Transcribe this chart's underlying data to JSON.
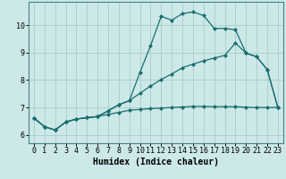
{
  "title": "",
  "xlabel": "Humidex (Indice chaleur)",
  "bg_color": "#cce8e8",
  "grid_color": "#aacccc",
  "line_color": "#1a6e6e",
  "xlim": [
    -0.5,
    23.5
  ],
  "ylim": [
    5.7,
    10.85
  ],
  "xticks": [
    0,
    1,
    2,
    3,
    4,
    5,
    6,
    7,
    8,
    9,
    10,
    11,
    12,
    13,
    14,
    15,
    16,
    17,
    18,
    19,
    20,
    21,
    22,
    23
  ],
  "yticks": [
    6,
    7,
    8,
    9,
    10
  ],
  "line1_x": [
    0,
    1,
    2,
    3,
    4,
    5,
    6,
    7,
    8,
    9,
    10,
    11,
    12,
    13,
    14,
    15,
    16,
    17,
    18,
    19,
    20,
    21,
    22,
    23
  ],
  "line1_y": [
    6.62,
    6.3,
    6.18,
    6.47,
    6.58,
    6.63,
    6.67,
    6.88,
    7.1,
    7.25,
    8.28,
    9.25,
    10.32,
    10.18,
    10.42,
    10.48,
    10.35,
    9.88,
    9.88,
    9.83,
    8.98,
    8.85,
    8.38,
    7.0
  ],
  "line2_x": [
    0,
    1,
    2,
    3,
    4,
    5,
    6,
    7,
    8,
    9,
    10,
    11,
    12,
    13,
    14,
    15,
    16,
    17,
    18,
    19,
    20,
    21,
    22,
    23
  ],
  "line2_y": [
    6.62,
    6.3,
    6.18,
    6.47,
    6.58,
    6.63,
    6.67,
    6.88,
    7.1,
    7.25,
    7.52,
    7.78,
    8.02,
    8.22,
    8.45,
    8.58,
    8.7,
    8.8,
    8.9,
    9.35,
    8.98,
    8.85,
    8.38,
    7.0
  ],
  "line3_x": [
    0,
    1,
    2,
    3,
    4,
    5,
    6,
    7,
    8,
    9,
    10,
    11,
    12,
    13,
    14,
    15,
    16,
    17,
    18,
    19,
    20,
    21,
    22,
    23
  ],
  "line3_y": [
    6.62,
    6.3,
    6.18,
    6.47,
    6.58,
    6.63,
    6.67,
    6.75,
    6.82,
    6.9,
    6.93,
    6.96,
    6.98,
    7.0,
    7.02,
    7.04,
    7.04,
    7.03,
    7.03,
    7.03,
    7.01,
    7.0,
    7.0,
    7.0
  ],
  "marker": "D",
  "markersize": 2.0,
  "linewidth": 0.9,
  "xlabel_fontsize": 7,
  "tick_fontsize": 6
}
